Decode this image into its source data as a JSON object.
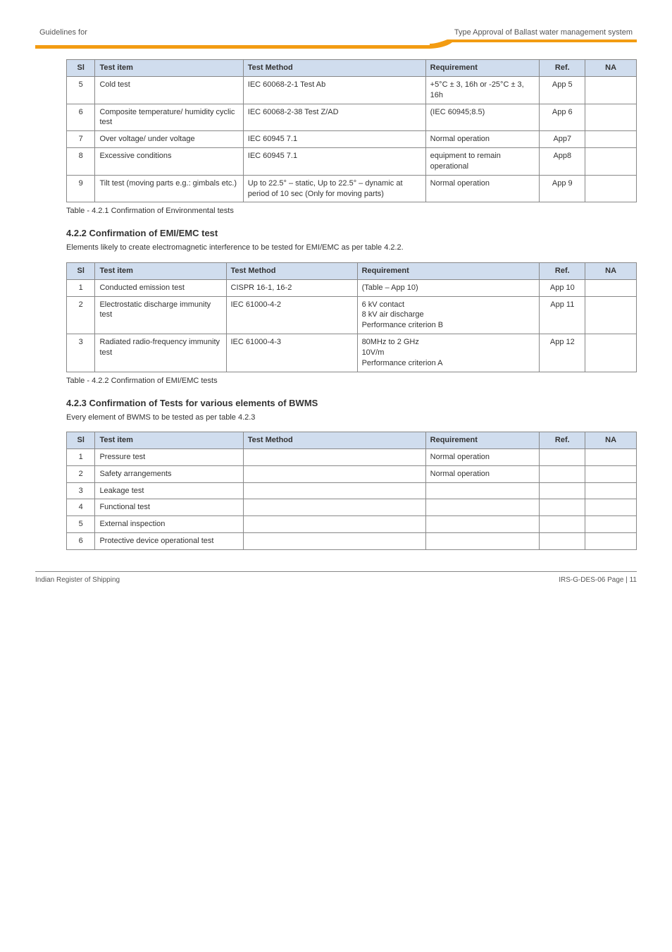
{
  "header": {
    "doc_title_left": "Guidelines for",
    "doc_title_right": "Type Approval of Ballast water management system"
  },
  "table1": {
    "headers": [
      "Sl",
      "Test item",
      "Test Method",
      "Requirement",
      "Ref.",
      "NA"
    ],
    "rows": [
      {
        "sl": "5",
        "item": "Cold test",
        "method": "IEC 60068-2-1 Test Ab",
        "req": "+5°C ± 3, 16h or -25°C ± 3, 16h",
        "ref": "App 5",
        "na": ""
      },
      {
        "sl": "6",
        "item": "Composite temperature/ humidity cyclic test",
        "method": "IEC 60068-2-38 Test Z/AD",
        "req": "(IEC 60945;8.5)",
        "ref": "App 6",
        "na": ""
      },
      {
        "sl": "7",
        "item": "Over voltage/ under voltage",
        "method": "IEC 60945 7.1",
        "req": "Normal operation",
        "ref": "App7",
        "na": ""
      },
      {
        "sl": "8",
        "item": "Excessive conditions",
        "method": "IEC 60945 7.1",
        "req": "equipment to remain operational",
        "ref": "App8",
        "na": ""
      },
      {
        "sl": "9",
        "item": "Tilt test (moving parts e.g.: gimbals etc.)",
        "method": "Up to 22.5° – static, Up to 22.5° – dynamic at period of 10 sec (Only for moving parts)",
        "req": "Normal operation",
        "ref": "App 9",
        "na": ""
      }
    ],
    "caption": "Table - 4.2.1 Confirmation of Environmental tests"
  },
  "section1": {
    "heading": "4.2.2 Confirmation of EMI/EMC test",
    "text": "Elements likely to create electromagnetic interference to be tested for EMI/EMC as per table 4.2.2."
  },
  "table2": {
    "headers": [
      "Sl",
      "Test item",
      "Test Method",
      "Requirement",
      "Ref.",
      "NA"
    ],
    "rows": [
      {
        "sl": "1",
        "item": "Conducted emission test",
        "method": "CISPR 16-1, 16-2",
        "req": "(Table – App 10)",
        "ref": "App 10",
        "na": ""
      },
      {
        "sl": "2",
        "item": "Electrostatic discharge immunity test",
        "method": "IEC 61000-4-2",
        "req": "6 kV contact\n8 kV air discharge\nPerformance criterion B",
        "ref": "App 11",
        "na": ""
      },
      {
        "sl": "3",
        "item": "Radiated radio-frequency immunity test",
        "method": "IEC 61000-4-3",
        "req": "80MHz to 2 GHz\n10V/m\nPerformance criterion A",
        "ref": "App 12",
        "na": ""
      }
    ],
    "caption": "Table - 4.2.2 Confirmation of EMI/EMC tests"
  },
  "section2": {
    "heading": "4.2.3 Confirmation of Tests for various elements of BWMS",
    "text": "Every element of BWMS to be tested as per table 4.2.3"
  },
  "table3": {
    "headers": [
      "Sl",
      "Test item",
      "Test Method",
      "Requirement",
      "Ref.",
      "NA"
    ],
    "rows": [
      {
        "sl": "1",
        "item": "Pressure test",
        "method": "",
        "req": "Normal operation",
        "ref": "",
        "na": ""
      },
      {
        "sl": "2",
        "item": "Safety arrangements",
        "method": "",
        "req": "Normal operation",
        "ref": "",
        "na": ""
      },
      {
        "sl": "3",
        "item": "Leakage test",
        "method": "",
        "req": "",
        "ref": "",
        "na": ""
      },
      {
        "sl": "4",
        "item": "Functional test",
        "method": "",
        "req": "",
        "ref": "",
        "na": ""
      },
      {
        "sl": "5",
        "item": "External inspection",
        "method": "",
        "req": "",
        "ref": "",
        "na": ""
      },
      {
        "sl": "6",
        "item": "Protective device operational test",
        "method": "",
        "req": "",
        "ref": "",
        "na": ""
      }
    ]
  },
  "footer": {
    "left": "Indian Register of Shipping",
    "right": "IRS-G-DES-06    Page | 11"
  },
  "colors": {
    "header_bg": "#d0ddee",
    "accent": "#f39c12",
    "border": "#888888"
  }
}
